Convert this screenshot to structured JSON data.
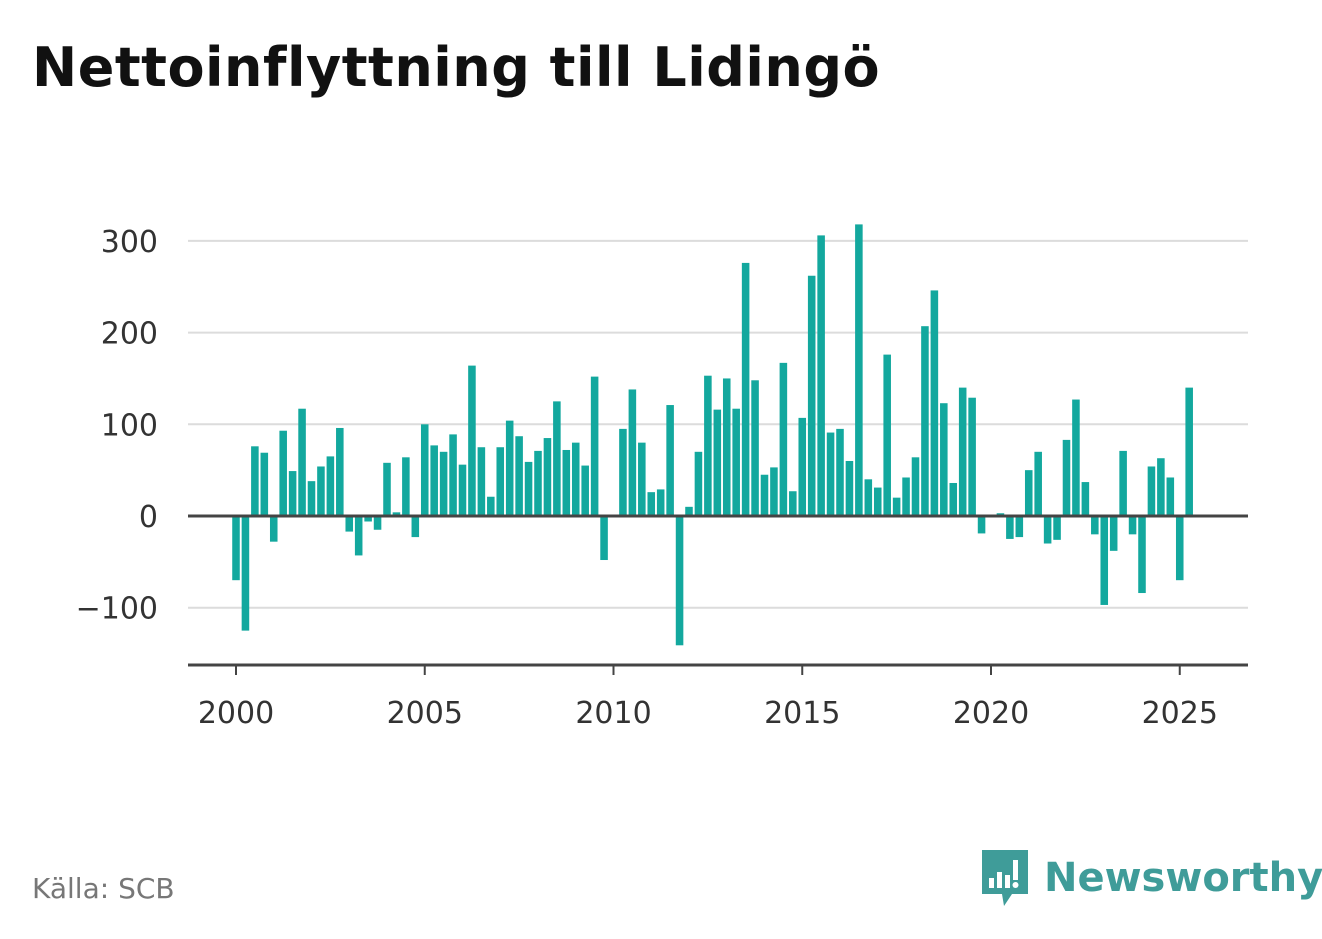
{
  "title": "Nettoinflyttning till Lidingö",
  "source": "Källa: SCB",
  "brand": {
    "name": "Newsworthy",
    "icon": "bar-chart-bubble-icon",
    "color": "#3f9c99"
  },
  "chart_data": {
    "type": "bar",
    "title": "Nettoinflyttning till Lidingö",
    "xlabel": "",
    "ylabel": "",
    "frequency": "quarterly",
    "x_start": 2000.0,
    "x_step": 0.25,
    "xlim": [
      1997.5,
      2026.8
    ],
    "ylim": [
      -160,
      330
    ],
    "y_ticks": [
      300,
      200,
      100,
      0,
      -100
    ],
    "y_tick_labels": [
      "300",
      "200",
      "100",
      "0",
      "−100"
    ],
    "x_ticks": [
      2000,
      2005,
      2010,
      2015,
      2020,
      2025
    ],
    "x_tick_labels": [
      "2000",
      "2005",
      "2010",
      "2015",
      "2020",
      "2025"
    ],
    "grid": true,
    "bar_color": "#13a89e",
    "values": [
      -70,
      -125,
      76,
      69,
      -28,
      93,
      49,
      117,
      38,
      54,
      65,
      96,
      -17,
      -43,
      -6,
      -15,
      58,
      4,
      64,
      -23,
      100,
      77,
      70,
      89,
      56,
      164,
      75,
      21,
      75,
      104,
      87,
      59,
      71,
      85,
      125,
      72,
      80,
      55,
      152,
      -48,
      0,
      95,
      138,
      80,
      26,
      29,
      121,
      -141,
      10,
      70,
      153,
      116,
      150,
      117,
      276,
      148,
      45,
      53,
      167,
      27,
      107,
      262,
      306,
      91,
      95,
      60,
      318,
      40,
      31,
      176,
      20,
      42,
      64,
      207,
      246,
      123,
      36,
      140,
      129,
      -19,
      0,
      3,
      -25,
      -23,
      50,
      70,
      -30,
      -26,
      83,
      127,
      37,
      -20,
      -97,
      -38,
      71,
      -20,
      -84,
      54,
      63,
      42,
      -70,
      140
    ]
  }
}
